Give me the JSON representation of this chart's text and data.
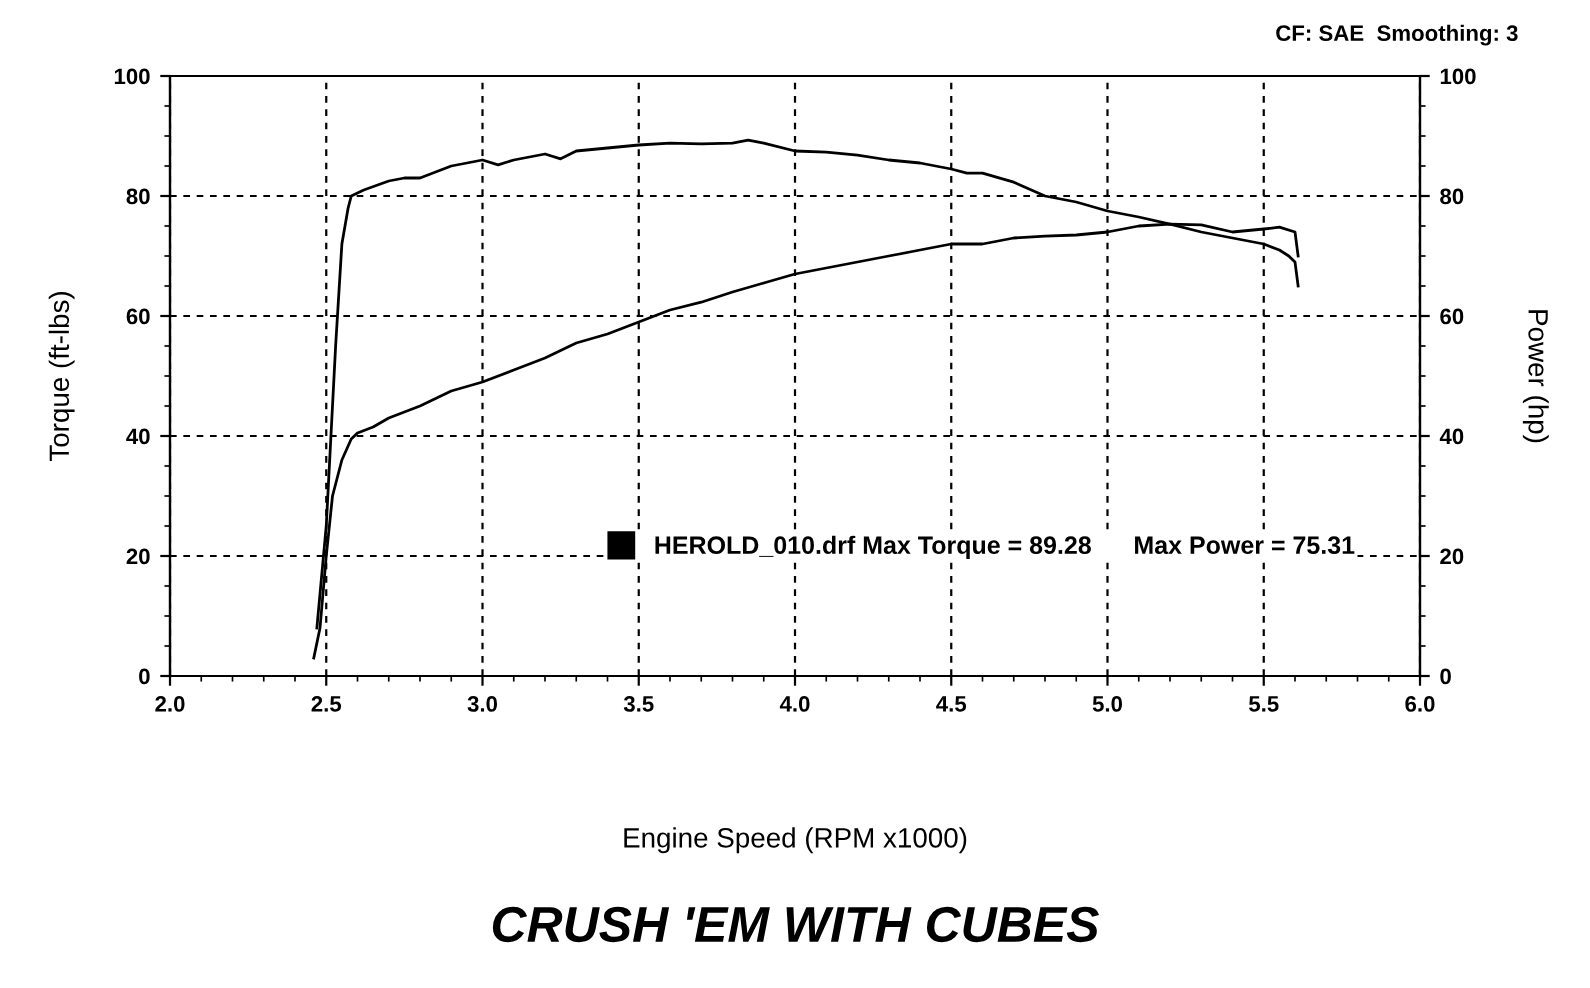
{
  "chart_data": {
    "type": "line",
    "xlabel": "Engine Speed (RPM x1000)",
    "ylabel": "Torque (ft-lbs)",
    "y2label": "Power (hp)",
    "annotations": [
      "CF: SAE  Smoothing: 3",
      "CRUSH 'EM WITH CUBES"
    ],
    "series": [
      {
        "name": "HEROLD_010.drf Max Torque = 89.28      Max Power = 75.31",
        "color": "#000000",
        "x": [
          2.47,
          2.5,
          2.53,
          2.55,
          2.57,
          2.58,
          2.62,
          2.7,
          2.75,
          2.8,
          2.9,
          3.0,
          3.05,
          3.1,
          3.2,
          3.25,
          3.3,
          3.4,
          3.5,
          3.6,
          3.7,
          3.8,
          3.85,
          3.9,
          4.0,
          4.1,
          4.2,
          4.3,
          4.4,
          4.5,
          4.55,
          4.6,
          4.7,
          4.8,
          4.9,
          5.0,
          5.1,
          5.2,
          5.3,
          5.4,
          5.5,
          5.55,
          5.58,
          5.6,
          5.61
        ],
        "values": [
          8,
          25,
          55,
          72,
          78,
          80,
          81,
          82.5,
          83,
          83,
          85,
          86,
          85.2,
          86,
          87,
          86.2,
          87.5,
          88,
          88.5,
          88.8,
          88.7,
          88.8,
          89.3,
          88.8,
          87.5,
          87.3,
          86.8,
          86,
          85.5,
          84.5,
          83.8,
          83.8,
          82.3,
          80,
          79,
          77.5,
          76.5,
          75.3,
          74,
          73,
          72,
          71,
          70,
          69,
          65
        ]
      },
      {
        "color": "#000000",
        "x": [
          2.46,
          2.48,
          2.5,
          2.52,
          2.55,
          2.58,
          2.6,
          2.65,
          2.7,
          2.8,
          2.9,
          3.0,
          3.1,
          3.2,
          3.3,
          3.4,
          3.5,
          3.6,
          3.7,
          3.8,
          3.9,
          4.0,
          4.1,
          4.2,
          4.3,
          4.4,
          4.5,
          4.6,
          4.7,
          4.8,
          4.9,
          5.0,
          5.1,
          5.2,
          5.3,
          5.4,
          5.5,
          5.55,
          5.6,
          5.61
        ],
        "values": [
          3,
          8,
          20,
          30,
          36,
          39.5,
          40.5,
          41.5,
          43,
          45,
          47.5,
          49,
          51,
          53,
          55.5,
          57,
          59,
          61,
          62.3,
          64,
          65.5,
          67,
          68,
          69,
          70,
          71,
          72,
          72,
          73,
          73.3,
          73.5,
          74,
          75,
          75.3,
          75.2,
          74,
          74.5,
          74.8,
          74,
          70
        ]
      }
    ],
    "xlim": [
      2.0,
      6.0
    ],
    "xticks": [
      {
        "value": 2,
        "label": "2.0"
      },
      2.5,
      {
        "value": 3,
        "label": "3.0"
      },
      3.5,
      {
        "value": 4,
        "label": "4.0"
      },
      4.5,
      {
        "value": 5,
        "label": "5.0"
      },
      5.5,
      {
        "value": 6,
        "label": "6.0"
      }
    ],
    "ylim": [
      0,
      100
    ],
    "yticks": [
      0,
      20,
      40,
      60,
      80,
      100
    ],
    "y2lim": [
      0,
      100
    ],
    "y2ticks": [
      0,
      20,
      40,
      60,
      80,
      100
    ],
    "grid": true,
    "legend": "bottom right",
    "marker": "none",
    "line_style": "solid"
  }
}
